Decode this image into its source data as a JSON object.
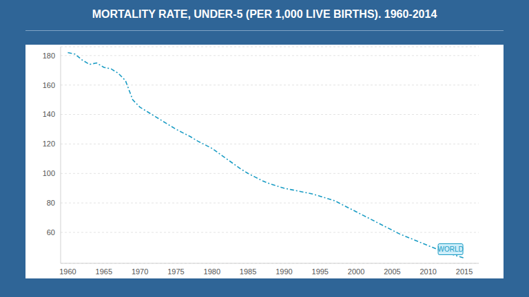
{
  "chart_data": {
    "type": "line",
    "title": "MORTALITY RATE, UNDER-5 (PER 1,000 LIVE BIRTHS). 1960-2014",
    "x": [
      1960,
      1961,
      1962,
      1963,
      1964,
      1965,
      1966,
      1967,
      1968,
      1969,
      1970,
      1971,
      1972,
      1973,
      1974,
      1975,
      1976,
      1977,
      1978,
      1979,
      1980,
      1981,
      1982,
      1983,
      1984,
      1985,
      1986,
      1987,
      1988,
      1989,
      1990,
      1991,
      1992,
      1993,
      1994,
      1995,
      1996,
      1997,
      1998,
      1999,
      2000,
      2001,
      2002,
      2003,
      2004,
      2005,
      2006,
      2007,
      2008,
      2009,
      2010,
      2011,
      2012,
      2013,
      2014,
      2015
    ],
    "series": [
      {
        "name": "WORLD",
        "color": "#1a9cc4",
        "line_style": "dashdot",
        "values": [
          182,
          181,
          177,
          174,
          175,
          172,
          171,
          168,
          163,
          150,
          145,
          142,
          139,
          136,
          133,
          130,
          127.5,
          125,
          122,
          119.5,
          117,
          113.5,
          110,
          106.5,
          103,
          100,
          97.5,
          95,
          93,
          91.5,
          90,
          89,
          88,
          87,
          86,
          84.5,
          83,
          81.5,
          79,
          76.5,
          74,
          71.5,
          69,
          66.5,
          64,
          61.5,
          59,
          57,
          55,
          53,
          51,
          49,
          47,
          45.5,
          44,
          42.5
        ]
      }
    ],
    "xlim": [
      1959,
      2017
    ],
    "xticks": [
      1960,
      1965,
      1970,
      1975,
      1980,
      1985,
      1990,
      1995,
      2000,
      2005,
      2010,
      2015
    ],
    "ylim": [
      39,
      186
    ],
    "yticks": [
      60,
      80,
      100,
      120,
      140,
      160,
      180
    ],
    "grid": true
  }
}
